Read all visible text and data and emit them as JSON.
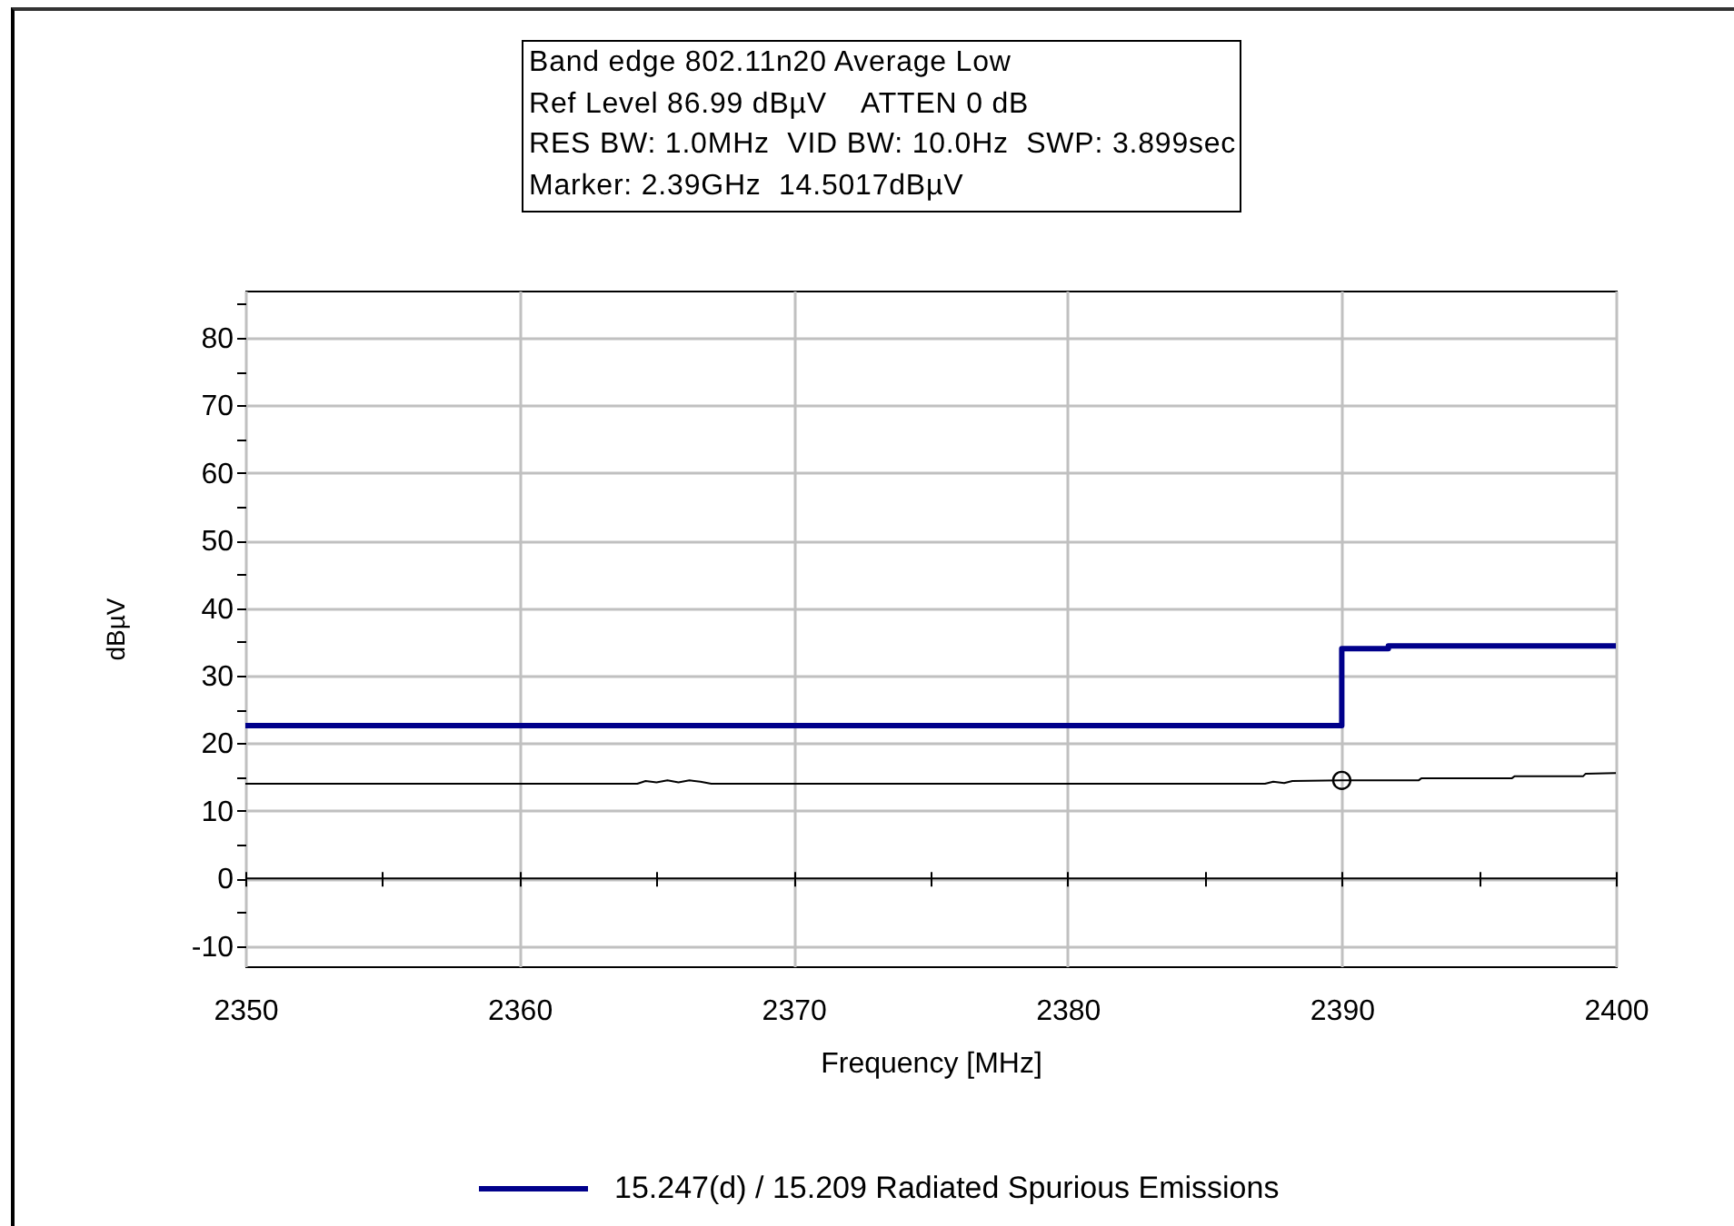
{
  "chart_data": {
    "type": "line",
    "title": "Band edge 802.11n20 Average Low",
    "annotations": [
      "Ref Level 86.99 dBµV    ATTEN 0 dB",
      "RES BW: 1.0MHz  VID BW: 10.0Hz  SWP: 3.899sec",
      "Marker: 2.39GHz  14.5017dBµV"
    ],
    "xlabel": "Frequency [MHz]",
    "ylabel": "dBµV",
    "series": [
      {
        "name": "15.247(d) / 15.209 Radiated Spurious Emissions",
        "type": "step",
        "color": "#00008b",
        "x": [
          2350,
          2390,
          2391.7,
          2400
        ],
        "values": [
          22.6,
          34.0,
          34.4,
          34.4
        ]
      },
      {
        "color": "#000000",
        "x": [
          2350,
          2364.3,
          2364.6,
          2365.0,
          2365.4,
          2365.8,
          2366.2,
          2366.6,
          2367.0,
          2387.2,
          2387.5,
          2387.9,
          2388.2,
          2390,
          2392.8,
          2392.9,
          2396.2,
          2396.3,
          2398.8,
          2398.9,
          2400
        ],
        "values": [
          14.0,
          14.0,
          14.4,
          14.2,
          14.5,
          14.2,
          14.5,
          14.3,
          14.0,
          14.0,
          14.3,
          14.1,
          14.4,
          14.5,
          14.5,
          14.8,
          14.8,
          15.1,
          15.1,
          15.5,
          15.6
        ]
      },
      {
        "type": "scatter",
        "color": "#000000",
        "marker": "circle",
        "x": [
          2390
        ],
        "values": [
          14.5017
        ]
      }
    ],
    "xlim": [
      2350,
      2400
    ],
    "xticks": [
      2350,
      {
        "value": 2355,
        "label": null
      },
      2360,
      {
        "value": 2365,
        "label": null
      },
      2370,
      {
        "value": 2375,
        "label": null
      },
      2380,
      {
        "value": 2385,
        "label": null
      },
      2390,
      {
        "value": 2395,
        "label": null
      },
      2400
    ],
    "ylim": [
      -13.01,
      86.99
    ],
    "yticks": [
      -10,
      {
        "value": -5,
        "label": null
      },
      0,
      {
        "value": 5,
        "label": null
      },
      10,
      {
        "value": 15,
        "label": null
      },
      20,
      {
        "value": 25,
        "label": null
      },
      30,
      {
        "value": 35,
        "label": null
      },
      40,
      {
        "value": 45,
        "label": null
      },
      50,
      {
        "value": 55,
        "label": null
      },
      60,
      {
        "value": 65,
        "label": null
      },
      70,
      {
        "value": 75,
        "label": null
      },
      80,
      {
        "value": 85,
        "label": null
      }
    ],
    "ref_lines": [
      {
        "axis": "y",
        "value": 0,
        "color": "#000000"
      }
    ],
    "grid": true,
    "legend": "bottom"
  }
}
